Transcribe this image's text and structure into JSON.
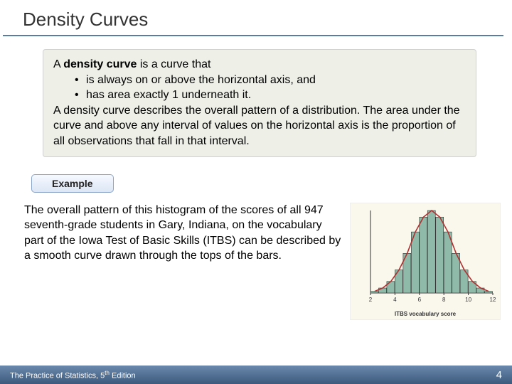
{
  "title": "Density Curves",
  "definition": {
    "lead": "A ",
    "term": "density curve",
    "lead2": " is a curve that",
    "bullets": [
      "is always on or above the horizontal axis, and",
      "has area exactly 1 underneath it."
    ],
    "para": "A density curve describes the overall pattern of a distribution. The area under the curve and above any interval of values on the horizontal axis is the proportion of all observations that fall in that interval."
  },
  "example_label": "Example",
  "body_text": "The overall pattern of this histogram of the scores of all 947 seventh-grade students in Gary, Indiana, on the vocabulary part of the Iowa Test of Basic Skills (ITBS) can be described by a smooth curve drawn through the tops of the bars.",
  "chart": {
    "type": "histogram_with_curve",
    "xlabel": "ITBS vocabulary score",
    "xticks": [
      2,
      4,
      6,
      8,
      10,
      12
    ],
    "bar_heights": [
      2,
      6,
      14,
      28,
      48,
      74,
      92,
      100,
      92,
      74,
      48,
      28,
      14,
      6,
      2
    ],
    "bar_color": "#8fb9a8",
    "bar_border": "#333333",
    "curve_color": "#b03030",
    "background_color": "#faf7ec",
    "axis_color": "#333333",
    "tick_fontsize": 8
  },
  "footer": {
    "book": "The Practice of Statistics, 5",
    "ed_suffix": "th",
    "ed_word": " Edition",
    "page": "4"
  },
  "colors": {
    "title_rule": "#5a7ca0",
    "defbox_bg": "#eef0e8",
    "footer_top": "#6a89ac",
    "footer_bottom": "#3d5a7d"
  }
}
